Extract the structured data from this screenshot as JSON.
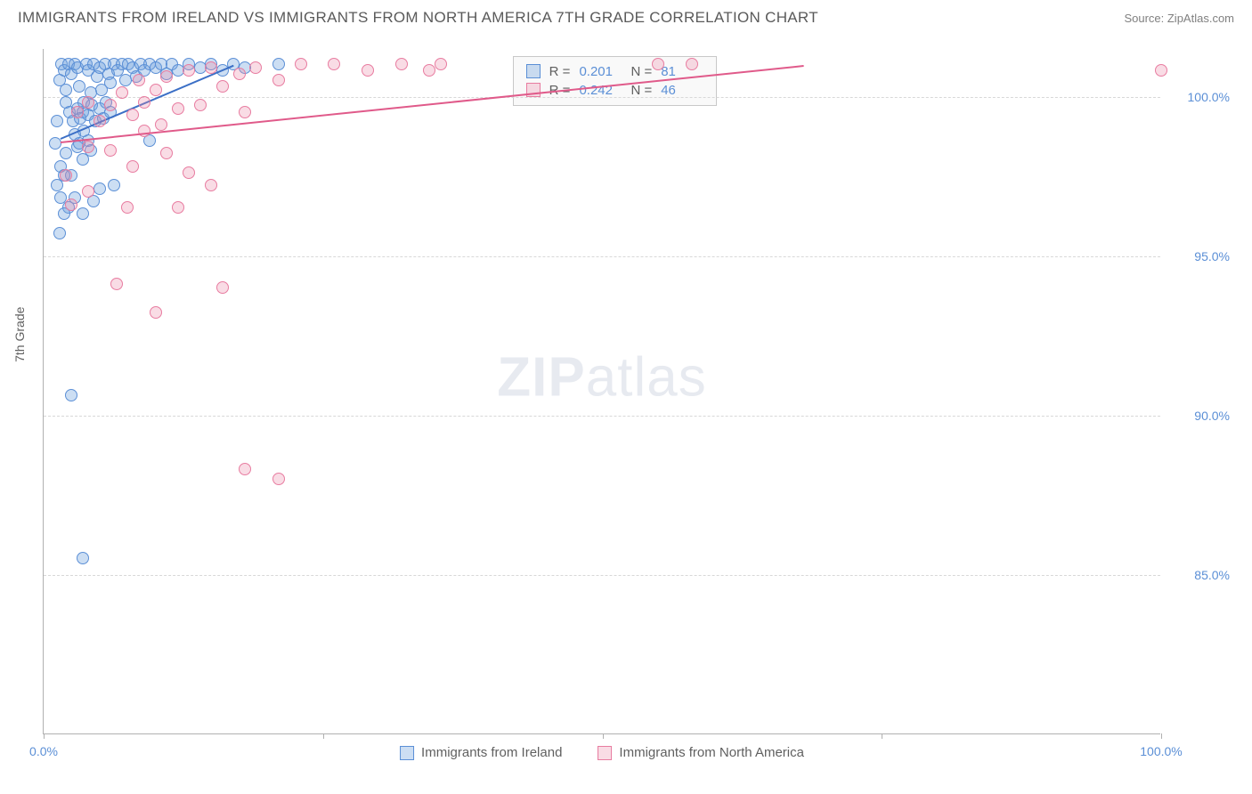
{
  "header": {
    "title": "IMMIGRANTS FROM IRELAND VS IMMIGRANTS FROM NORTH AMERICA 7TH GRADE CORRELATION CHART",
    "source": "Source: ZipAtlas.com"
  },
  "chart": {
    "type": "scatter",
    "y_axis_title": "7th Grade",
    "watermark": {
      "bold": "ZIP",
      "rest": "atlas"
    },
    "background_color": "#ffffff",
    "grid_color": "#d8d8d8",
    "axis_color": "#b0b0b0",
    "xlim": [
      0,
      100
    ],
    "ylim": [
      80,
      101.5
    ],
    "xticks": [
      0,
      25,
      50,
      75,
      100
    ],
    "xtick_labels": {
      "0": "0.0%",
      "100": "100.0%"
    },
    "yticks": [
      85,
      90,
      95,
      100
    ],
    "ytick_labels": [
      "85.0%",
      "90.0%",
      "95.0%",
      "100.0%"
    ],
    "marker_radius": 7,
    "marker_border_width": 1.3,
    "series": [
      {
        "name": "Immigrants from Ireland",
        "fill_color": "rgba(110,160,220,0.35)",
        "stroke_color": "#5b8fd6",
        "line_color": "#3b6fc6",
        "R": "0.201",
        "N": "81",
        "trend": {
          "x1": 1.5,
          "y1": 98.7,
          "x2": 17,
          "y2": 101
        },
        "points": [
          [
            1,
            98.5
          ],
          [
            1.2,
            99.2
          ],
          [
            1.4,
            100.5
          ],
          [
            1.6,
            101
          ],
          [
            1.8,
            100.8
          ],
          [
            2,
            100.2
          ],
          [
            2.2,
            101
          ],
          [
            2.5,
            100.7
          ],
          [
            2.8,
            101
          ],
          [
            3,
            100.9
          ],
          [
            3.2,
            100.3
          ],
          [
            3.5,
            99.5
          ],
          [
            3.8,
            101
          ],
          [
            4,
            100.8
          ],
          [
            4.2,
            100.1
          ],
          [
            4.5,
            101
          ],
          [
            4.8,
            100.6
          ],
          [
            5,
            100.9
          ],
          [
            5.2,
            100.2
          ],
          [
            5.5,
            101
          ],
          [
            5.8,
            100.7
          ],
          [
            6,
            100.4
          ],
          [
            6.3,
            101
          ],
          [
            6.6,
            100.8
          ],
          [
            7,
            101
          ],
          [
            7.3,
            100.5
          ],
          [
            7.6,
            101
          ],
          [
            8,
            100.9
          ],
          [
            8.3,
            100.6
          ],
          [
            8.7,
            101
          ],
          [
            9,
            100.8
          ],
          [
            9.5,
            101
          ],
          [
            10,
            100.9
          ],
          [
            10.5,
            101
          ],
          [
            11,
            100.7
          ],
          [
            11.5,
            101
          ],
          [
            12,
            100.8
          ],
          [
            13,
            101
          ],
          [
            14,
            100.9
          ],
          [
            15,
            101
          ],
          [
            16,
            100.8
          ],
          [
            17,
            101
          ],
          [
            18,
            100.9
          ],
          [
            21,
            101
          ],
          [
            1.5,
            97.8
          ],
          [
            2,
            98.2
          ],
          [
            2.5,
            97.5
          ],
          [
            3,
            98.4
          ],
          [
            3.5,
            98
          ],
          [
            4,
            98.6
          ],
          [
            2,
            99.8
          ],
          [
            2.3,
            99.5
          ],
          [
            2.6,
            99.2
          ],
          [
            3,
            99.6
          ],
          [
            3.3,
            99.3
          ],
          [
            3.6,
            99.8
          ],
          [
            4,
            99.4
          ],
          [
            4.3,
            99.7
          ],
          [
            4.6,
            99.2
          ],
          [
            5,
            99.6
          ],
          [
            5.3,
            99.3
          ],
          [
            5.6,
            99.8
          ],
          [
            6,
            99.5
          ],
          [
            1.2,
            97.2
          ],
          [
            1.5,
            96.8
          ],
          [
            1.8,
            97.5
          ],
          [
            2.2,
            96.5
          ],
          [
            2.8,
            98.8
          ],
          [
            3.2,
            98.5
          ],
          [
            3.6,
            98.9
          ],
          [
            4.2,
            98.3
          ],
          [
            1.8,
            96.3
          ],
          [
            3.5,
            96.3
          ],
          [
            5,
            97.1
          ],
          [
            6.3,
            97.2
          ],
          [
            2.8,
            96.8
          ],
          [
            4.5,
            96.7
          ],
          [
            1.4,
            95.7
          ],
          [
            2.5,
            90.6
          ],
          [
            3.5,
            85.5
          ],
          [
            9.5,
            98.6
          ]
        ]
      },
      {
        "name": "Immigrants from North America",
        "fill_color": "rgba(235,140,170,0.30)",
        "stroke_color": "#e87ca0",
        "line_color": "#e05a8a",
        "R": "0.242",
        "N": "46",
        "trend": {
          "x1": 1.5,
          "y1": 98.6,
          "x2": 68,
          "y2": 101
        },
        "points": [
          [
            3,
            99.5
          ],
          [
            4,
            99.8
          ],
          [
            5,
            99.2
          ],
          [
            6,
            99.7
          ],
          [
            7,
            100.1
          ],
          [
            8,
            99.4
          ],
          [
            8.5,
            100.5
          ],
          [
            9,
            99.8
          ],
          [
            10,
            100.2
          ],
          [
            10.5,
            99.1
          ],
          [
            11,
            100.6
          ],
          [
            12,
            99.6
          ],
          [
            13,
            100.8
          ],
          [
            14,
            99.7
          ],
          [
            15,
            100.9
          ],
          [
            16,
            100.3
          ],
          [
            17.5,
            100.7
          ],
          [
            18,
            99.5
          ],
          [
            19,
            100.9
          ],
          [
            21,
            100.5
          ],
          [
            23,
            101
          ],
          [
            26,
            101
          ],
          [
            29,
            100.8
          ],
          [
            32,
            101
          ],
          [
            34.5,
            100.8
          ],
          [
            35.5,
            101
          ],
          [
            55,
            101
          ],
          [
            58,
            101
          ],
          [
            100,
            100.8
          ],
          [
            4,
            98.4
          ],
          [
            6,
            98.3
          ],
          [
            8,
            97.8
          ],
          [
            9,
            98.9
          ],
          [
            11,
            98.2
          ],
          [
            13,
            97.6
          ],
          [
            2,
            97.5
          ],
          [
            4,
            97
          ],
          [
            2.5,
            96.6
          ],
          [
            7.5,
            96.5
          ],
          [
            12,
            96.5
          ],
          [
            6.5,
            94.1
          ],
          [
            16,
            94
          ],
          [
            10,
            93.2
          ],
          [
            18,
            88.3
          ],
          [
            21,
            88
          ],
          [
            15,
            97.2
          ]
        ]
      }
    ],
    "stats_box": {
      "left_pct": 42,
      "top_pct": 1
    },
    "legend": {
      "items": [
        {
          "label": "Immigrants from Ireland",
          "fill": "rgba(110,160,220,0.35)",
          "stroke": "#5b8fd6"
        },
        {
          "label": "Immigrants from North America",
          "fill": "rgba(235,140,170,0.30)",
          "stroke": "#e87ca0"
        }
      ]
    }
  }
}
